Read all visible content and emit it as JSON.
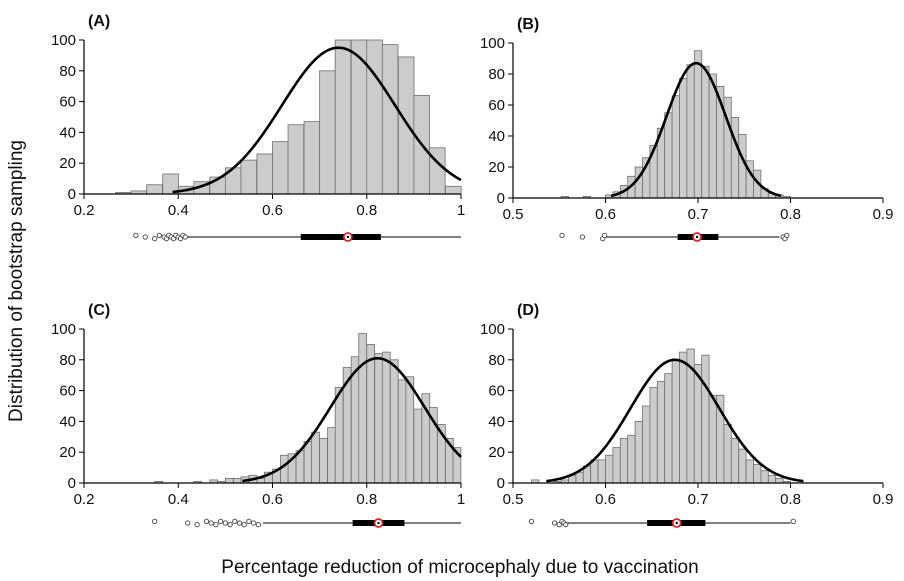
{
  "figure": {
    "ylabel": "Distribution of bootstrap sampling",
    "xlabel": "Percentage reduction of microcephaly due to vaccination"
  },
  "colors": {
    "bar_fill": "#cccccc",
    "bar_stroke": "#6e6e6e",
    "curve": "#000000",
    "median_marker": "#d62728"
  },
  "chart_data": [
    {
      "type": "bar",
      "panel_label": "(A)",
      "xlim": [
        0.2,
        1.0
      ],
      "ylim": [
        0,
        100
      ],
      "xticks": [
        "0.2",
        "0.4",
        "0.6",
        "0.8",
        "1"
      ],
      "yticks": [
        "0",
        "20",
        "40",
        "60",
        "80",
        "100"
      ],
      "bin_width": 0.0333,
      "bin_starts": [
        0.267,
        0.3,
        0.333,
        0.367,
        0.4,
        0.433,
        0.467,
        0.5,
        0.533,
        0.567,
        0.6,
        0.633,
        0.667,
        0.7,
        0.733,
        0.767,
        0.8,
        0.833,
        0.867,
        0.9,
        0.933,
        0.967
      ],
      "values": [
        1,
        2,
        6,
        13,
        5,
        8,
        11,
        17,
        22,
        26,
        34,
        45,
        47,
        80,
        100,
        100,
        100,
        97,
        89,
        64,
        30,
        5
      ],
      "fit_curve": {
        "mean": 0.74,
        "sd": 0.12,
        "peak": 95
      },
      "boxplot": {
        "whisker_low": 0.42,
        "q1": 0.66,
        "median": 0.76,
        "q3": 0.83,
        "whisker_high": 1.0,
        "outliers": [
          0.31,
          0.33,
          0.35,
          0.36,
          0.37,
          0.375,
          0.38,
          0.385,
          0.39,
          0.395,
          0.4,
          0.405,
          0.41,
          0.415
        ]
      }
    },
    {
      "type": "bar",
      "panel_label": "(B)",
      "xlim": [
        0.5,
        0.9
      ],
      "ylim": [
        0,
        100
      ],
      "xticks": [
        "0.5",
        "0.6",
        "0.7",
        "0.8",
        "0.9"
      ],
      "yticks": [
        "0",
        "20",
        "40",
        "60",
        "80",
        "100"
      ],
      "bin_width": 0.008,
      "bin_starts": [
        0.552,
        0.576,
        0.6,
        0.608,
        0.616,
        0.624,
        0.632,
        0.64,
        0.648,
        0.656,
        0.664,
        0.672,
        0.68,
        0.688,
        0.696,
        0.704,
        0.712,
        0.72,
        0.728,
        0.736,
        0.744,
        0.752,
        0.76,
        0.768,
        0.776,
        0.784,
        0.792
      ],
      "values": [
        1,
        1,
        2,
        4,
        8,
        14,
        20,
        26,
        34,
        45,
        55,
        66,
        77,
        86,
        95,
        85,
        80,
        72,
        65,
        52,
        41,
        24,
        18,
        6,
        3,
        2,
        1
      ],
      "fit_curve": {
        "mean": 0.698,
        "sd": 0.032,
        "peak": 87
      },
      "boxplot": {
        "whisker_low": 0.6,
        "q1": 0.678,
        "median": 0.699,
        "q3": 0.722,
        "whisker_high": 0.788,
        "outliers": [
          0.553,
          0.575,
          0.597,
          0.599,
          0.792,
          0.794,
          0.796
        ]
      }
    },
    {
      "type": "bar",
      "panel_label": "(C)",
      "xlim": [
        0.2,
        1.0
      ],
      "ylim": [
        0,
        100
      ],
      "xticks": [
        "0.2",
        "0.4",
        "0.6",
        "0.8",
        "1"
      ],
      "yticks": [
        "0",
        "20",
        "40",
        "60",
        "80",
        "100"
      ],
      "bin_width": 0.0167,
      "bin_starts": [
        0.35,
        0.433,
        0.467,
        0.483,
        0.5,
        0.517,
        0.533,
        0.55,
        0.567,
        0.583,
        0.6,
        0.617,
        0.633,
        0.65,
        0.667,
        0.683,
        0.7,
        0.717,
        0.733,
        0.75,
        0.767,
        0.783,
        0.8,
        0.817,
        0.833,
        0.85,
        0.867,
        0.883,
        0.9,
        0.917,
        0.933,
        0.95,
        0.967,
        0.983
      ],
      "values": [
        1,
        1,
        2,
        1,
        3,
        3,
        4,
        5,
        3,
        7,
        9,
        18,
        19,
        21,
        27,
        33,
        29,
        36,
        62,
        75,
        82,
        97,
        90,
        84,
        85,
        80,
        67,
        69,
        48,
        58,
        49,
        38,
        29,
        23
      ],
      "fit_curve": {
        "mean": 0.823,
        "sd": 0.1,
        "peak": 81
      },
      "boxplot": {
        "whisker_low": 0.58,
        "q1": 0.77,
        "median": 0.825,
        "q3": 0.88,
        "whisker_high": 1.0,
        "outliers": [
          0.35,
          0.42,
          0.44,
          0.46,
          0.47,
          0.48,
          0.49,
          0.5,
          0.51,
          0.52,
          0.53,
          0.54,
          0.55,
          0.56,
          0.57
        ]
      }
    },
    {
      "type": "bar",
      "panel_label": "(D)",
      "xlim": [
        0.5,
        0.9
      ],
      "ylim": [
        0,
        100
      ],
      "xticks": [
        "0.5",
        "0.6",
        "0.7",
        "0.8",
        "0.9"
      ],
      "yticks": [
        "0",
        "20",
        "40",
        "60",
        "80",
        "100"
      ],
      "bin_width": 0.008,
      "bin_starts": [
        0.52,
        0.544,
        0.552,
        0.56,
        0.568,
        0.576,
        0.584,
        0.592,
        0.6,
        0.608,
        0.616,
        0.624,
        0.632,
        0.64,
        0.648,
        0.656,
        0.664,
        0.672,
        0.68,
        0.688,
        0.696,
        0.704,
        0.712,
        0.72,
        0.728,
        0.736,
        0.744,
        0.752,
        0.76,
        0.768,
        0.776,
        0.784,
        0.792
      ],
      "values": [
        2,
        1,
        2,
        5,
        7,
        11,
        15,
        15,
        18,
        23,
        29,
        31,
        40,
        50,
        62,
        66,
        71,
        80,
        85,
        87,
        77,
        83,
        57,
        57,
        38,
        29,
        22,
        15,
        12,
        8,
        5,
        3,
        1
      ],
      "fit_curve": {
        "mean": 0.675,
        "sd": 0.048,
        "peak": 80
      },
      "boxplot": {
        "whisker_low": 0.555,
        "q1": 0.645,
        "median": 0.677,
        "q3": 0.708,
        "whisker_high": 0.8,
        "outliers": [
          0.52,
          0.545,
          0.55,
          0.553,
          0.555,
          0.557,
          0.803
        ]
      }
    }
  ]
}
